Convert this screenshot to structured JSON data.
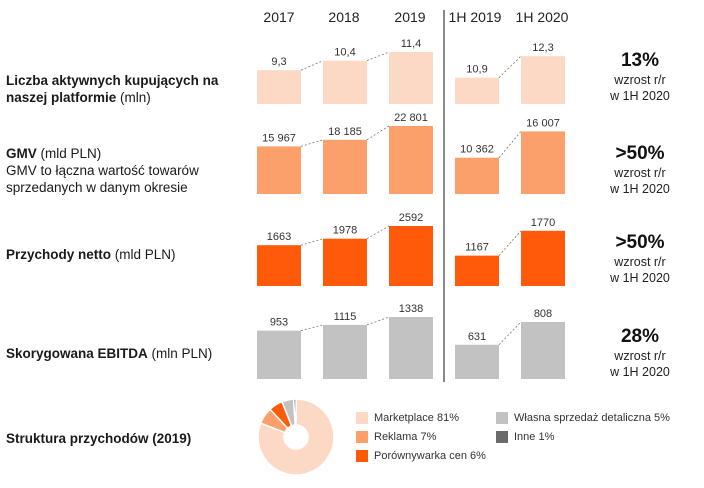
{
  "years": [
    "2017",
    "2018",
    "2019",
    "1H 2019",
    "1H 2020"
  ],
  "colors": {
    "light": "#fcd9c4",
    "medium": "#fba06a",
    "strong": "#ff5a0a",
    "grey": "#c2c2c2",
    "dark_grey": "#6b6b6b"
  },
  "chart_data": [
    {
      "type": "bar",
      "title": "Liczba aktywnych kupujących na naszej platformie",
      "unit": "(mln)",
      "categories": [
        "2017",
        "2018",
        "2019",
        "1H 2019",
        "1H 2020"
      ],
      "values": [
        9.3,
        10.4,
        11.4,
        10.9,
        12.3
      ],
      "labels": [
        "9,3",
        "10,4",
        "11,4",
        "10,9",
        "12,3"
      ],
      "summary": {
        "value": "13%",
        "line1": "wzrost r/r",
        "line2": "w 1H 2020"
      }
    },
    {
      "type": "bar",
      "title": "GMV",
      "unit": "(mld PLN)",
      "subtitle": "GMV to łączna wartość towarów sprzedanych w danym okresie",
      "categories": [
        "2017",
        "2018",
        "2019",
        "1H 2019",
        "1H 2020"
      ],
      "values": [
        15967,
        18185,
        22801,
        10362,
        16007
      ],
      "labels": [
        "15 967",
        "18 185",
        "22 801",
        "10 362",
        "16 007"
      ],
      "summary": {
        "value": ">50%",
        "line1": "wzrost r/r",
        "line2": "w 1H 2020"
      }
    },
    {
      "type": "bar",
      "title": "Przychody netto",
      "unit": "(mld PLN)",
      "categories": [
        "2017",
        "2018",
        "2019",
        "1H 2019",
        "1H 2020"
      ],
      "values": [
        1663,
        1978,
        2592,
        1167,
        1770
      ],
      "labels": [
        "1663",
        "1978",
        "2592",
        "1167",
        "1770"
      ],
      "summary": {
        "value": ">50%",
        "line1": "wzrost r/r",
        "line2": "w 1H 2020"
      }
    },
    {
      "type": "bar",
      "title": "Skorygowana EBITDA",
      "unit": "(mln PLN)",
      "categories": [
        "2017",
        "2018",
        "2019",
        "1H 2019",
        "1H 2020"
      ],
      "values": [
        953,
        1115,
        1338,
        631,
        808
      ],
      "labels": [
        "953",
        "1115",
        "1338",
        "631",
        "808"
      ],
      "summary": {
        "value": "28%",
        "line1": "wzrost r/r",
        "line2": "w 1H 2020"
      }
    },
    {
      "type": "pie",
      "title": "Struktura przychodów (2019)",
      "slices": [
        {
          "label": "Marketplace 81%",
          "value": 81
        },
        {
          "label": "Reklama 7%",
          "value": 7
        },
        {
          "label": "Porównywarka cen 6%",
          "value": 6
        },
        {
          "label": "Własna sprzedaż detaliczna 5%",
          "value": 5
        },
        {
          "label": "Inne 1%",
          "value": 1
        }
      ]
    }
  ]
}
